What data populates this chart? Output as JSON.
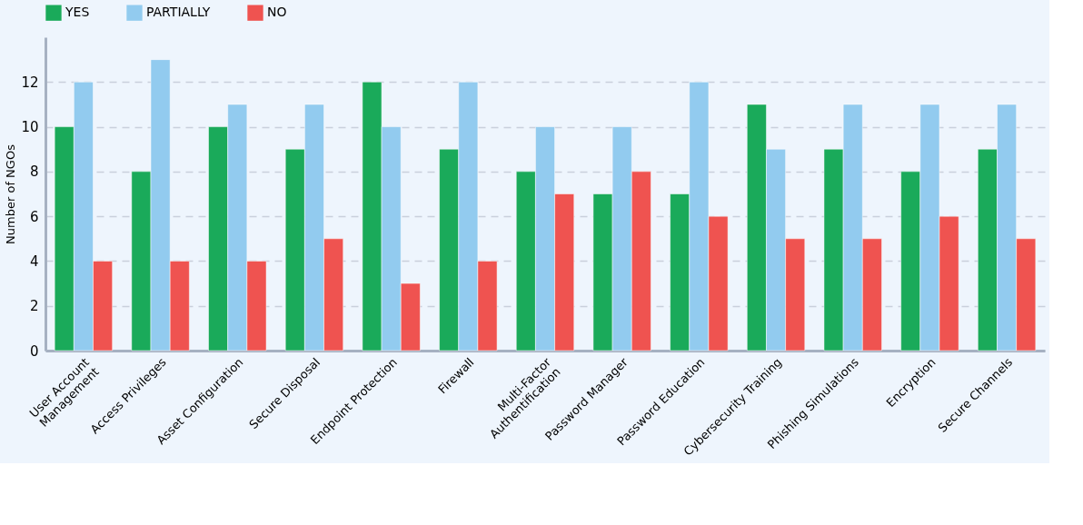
{
  "chart_data": {
    "type": "bar",
    "ylabel": "Number of NGOs",
    "categories": [
      "User Account\nManagement",
      "Access Privileges",
      "Asset Configuration",
      "Secure Disposal",
      "Endpoint Protection",
      "Firewall",
      "Multi-Factor\nAuthentification",
      "Password Manager",
      "Password Education",
      "Cybersecurity Training",
      "Phishing Simulations",
      "Encryption",
      "Secure Channels"
    ],
    "series": [
      {
        "name": "YES",
        "color": "#1aaa5a",
        "values": [
          10,
          8,
          10,
          9,
          12,
          9,
          8,
          7,
          7,
          11,
          9,
          8,
          9
        ]
      },
      {
        "name": "PARTIALLY",
        "color": "#92cbef",
        "values": [
          12,
          13,
          11,
          11,
          10,
          12,
          10,
          10,
          12,
          9,
          11,
          11,
          11
        ]
      },
      {
        "name": "NO",
        "color": "#ef5350",
        "values": [
          4,
          4,
          4,
          5,
          3,
          4,
          7,
          8,
          6,
          5,
          5,
          6,
          5
        ]
      }
    ],
    "ylim": [
      0,
      14
    ],
    "yticks": [
      0,
      2,
      4,
      6,
      8,
      10,
      12
    ],
    "grid": "y",
    "legend": "top"
  }
}
